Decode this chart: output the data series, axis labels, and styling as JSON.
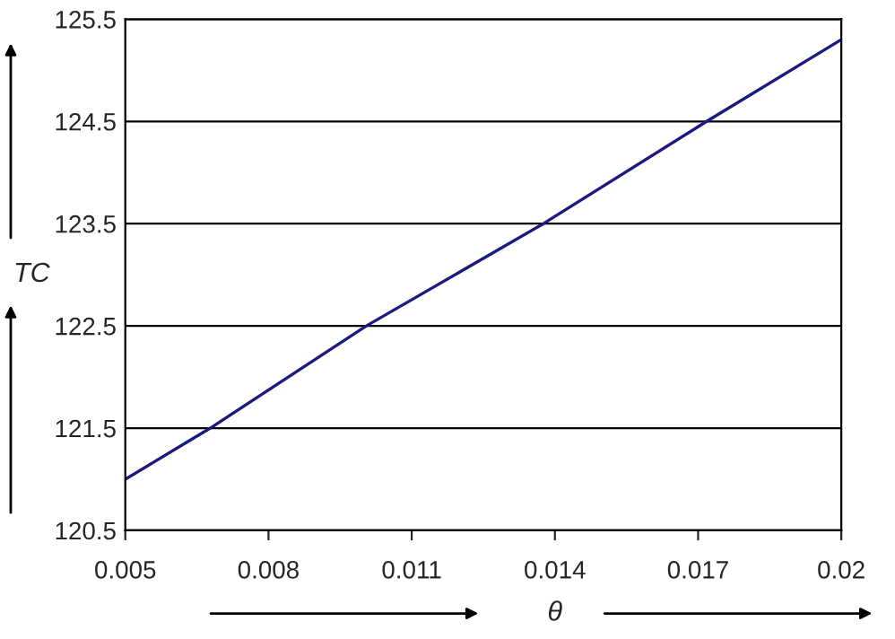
{
  "chart_data": {
    "type": "line",
    "xlabel": "θ",
    "ylabel": "TC",
    "series": [
      {
        "color": "#1a1a80",
        "x": [
          0.005,
          0.00678,
          0.01005,
          0.01376,
          0.01718,
          0.02
        ],
        "values": [
          121.0,
          121.5,
          122.5,
          123.5,
          124.5,
          125.3
        ]
      }
    ],
    "xlim": [
      0.005,
      0.02
    ],
    "xticks": [
      {
        "value": 0.005,
        "label": "0.005"
      },
      {
        "value": 0.008,
        "label": "0.008"
      },
      {
        "value": 0.011,
        "label": "0.011"
      },
      {
        "value": 0.014,
        "label": "0.014"
      },
      {
        "value": 0.017,
        "label": "0.017"
      },
      {
        "value": 0.02,
        "label": "0.02"
      }
    ],
    "ylim": [
      120.5,
      125.5
    ],
    "yticks": [
      120.5,
      121.5,
      122.5,
      123.5,
      124.5,
      125.5
    ],
    "grid": "y",
    "legend": false,
    "marker": "none",
    "line_style": "solid"
  }
}
